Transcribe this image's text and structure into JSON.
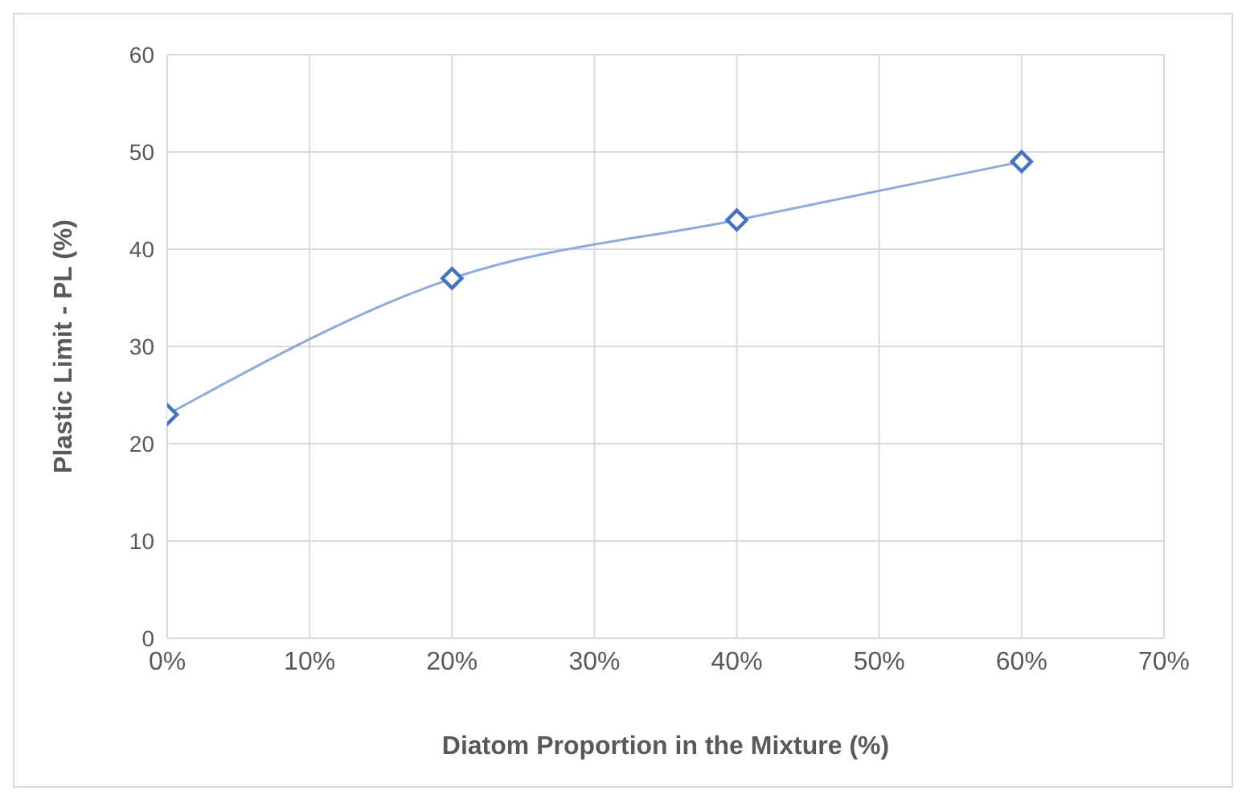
{
  "chart_data": {
    "type": "line",
    "xlabel": "Diatom Proportion in the Mixture (%)",
    "ylabel": "Plastic Limit - PL (%)",
    "x": [
      0,
      20,
      40,
      60
    ],
    "series": [
      {
        "color": "#4472c4",
        "values": [
          23,
          37,
          43,
          49
        ]
      }
    ],
    "xlim": [
      0,
      70
    ],
    "xticks": [
      {
        "value": 0,
        "label": "0%"
      },
      {
        "value": 10,
        "label": "10%"
      },
      {
        "value": 20,
        "label": "20%"
      },
      {
        "value": 30,
        "label": "30%"
      },
      {
        "value": 40,
        "label": "40%"
      },
      {
        "value": 50,
        "label": "50%"
      },
      {
        "value": 60,
        "label": "60%"
      },
      {
        "value": 70,
        "label": "70%"
      }
    ],
    "ylim": [
      0,
      60
    ],
    "yticks": [
      0,
      10,
      20,
      30,
      40,
      50,
      60
    ],
    "grid": true,
    "marker": "diamond",
    "legend": false
  }
}
